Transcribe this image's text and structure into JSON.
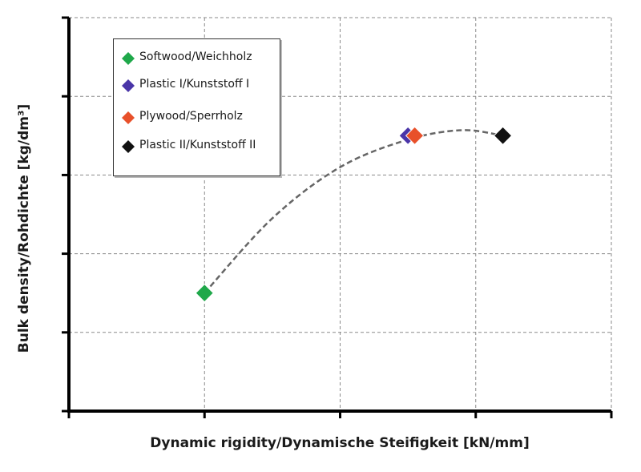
{
  "chart_data": {
    "type": "scatter",
    "title": "",
    "xlabel": "Dynamic rigidity/Dynamische Steifigkeit [kN/mm]",
    "ylabel": "Bulk density/Rohdichte [kg/dm³]",
    "xlim": [
      0,
      4
    ],
    "ylim": [
      0,
      5
    ],
    "x_ticks": [
      0,
      1,
      2,
      3,
      4
    ],
    "y_ticks": [
      0,
      1,
      2,
      3,
      4,
      5
    ],
    "tick_labels_shown": false,
    "grid": true,
    "grid_style": "dashed",
    "legend_position": "top-left",
    "series": [
      {
        "name": "Softwood/Weichholz",
        "color": "#1fa84a",
        "points": [
          {
            "x": 1.0,
            "y": 1.5
          }
        ]
      },
      {
        "name": "Plastic I/Kunststoff I",
        "color": "#4a35a8",
        "points": [
          {
            "x": 2.5,
            "y": 3.5
          }
        ]
      },
      {
        "name": "Plywood/Sperrholz",
        "color": "#e8502a",
        "points": [
          {
            "x": 2.55,
            "y": 3.5
          }
        ]
      },
      {
        "name": "Plastic II/Kunststoff II",
        "color": "#111111",
        "points": [
          {
            "x": 3.2,
            "y": 3.5
          }
        ]
      }
    ],
    "trend_curve": {
      "style": "dashed",
      "color": "#666666",
      "points": [
        {
          "x": 1.0,
          "y": 1.5
        },
        {
          "x": 1.5,
          "y": 2.45
        },
        {
          "x": 2.0,
          "y": 3.1
        },
        {
          "x": 2.5,
          "y": 3.45
        },
        {
          "x": 2.9,
          "y": 3.57
        },
        {
          "x": 3.2,
          "y": 3.5
        }
      ]
    }
  }
}
